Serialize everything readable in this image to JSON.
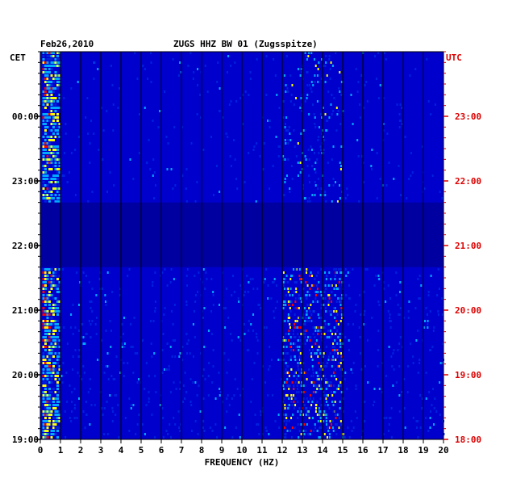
{
  "chart_data": {
    "type": "heatmap",
    "date": "Feb26,2010",
    "title": "ZUGS HHZ BW 01 (Zugsspitze)",
    "xlabel": "FREQUENCY (HZ)",
    "left_axis_label": "CET",
    "right_axis_label": "UTC",
    "xlim": [
      0,
      20
    ],
    "x_ticks": [
      "0",
      "1",
      "2",
      "3",
      "4",
      "5",
      "6",
      "7",
      "8",
      "9",
      "10",
      "11",
      "12",
      "13",
      "14",
      "15",
      "16",
      "17",
      "18",
      "19",
      "20"
    ],
    "y_ticks_cet": [
      "00:00",
      "23:00",
      "22:00",
      "21:00",
      "20:00",
      "19:00"
    ],
    "y_ticks_utc": [
      "23:00",
      "22:00",
      "21:00",
      "20:00",
      "19:00",
      "18:00"
    ],
    "colors": {
      "background": "#0000cc",
      "low": "#0022dd",
      "mid": "#00aaff",
      "high": "#ffff00",
      "peak": "#ff0000",
      "gap": "#000099",
      "utc_label": "#dd0000",
      "cet_label": "#000000"
    },
    "features": {
      "strong_low_freq_band_hz": [
        0,
        0.8
      ],
      "secondary_band_hz": [
        12,
        15
      ],
      "quiet_gap_cet": [
        "21:40",
        "22:40"
      ]
    }
  }
}
